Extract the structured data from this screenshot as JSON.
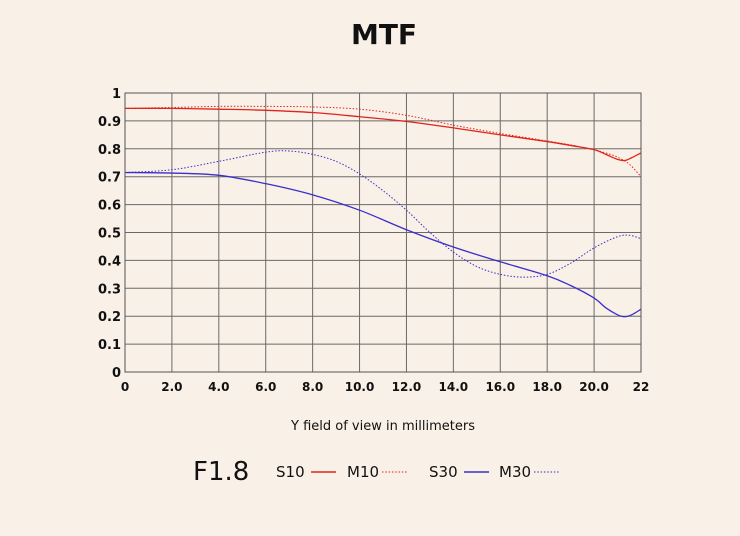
{
  "chart_data": {
    "type": "line",
    "title": "MTF",
    "xlabel": "Y field of view in millimeters",
    "ylabel": "",
    "xlim": [
      0,
      22
    ],
    "ylim": [
      0,
      1
    ],
    "grid": true,
    "x_ticks": [
      0,
      2,
      4,
      6,
      8,
      10,
      12,
      14,
      16,
      18,
      20,
      22
    ],
    "x_tick_labels": [
      "0",
      "2.0",
      "4.0",
      "6.0",
      "8.0",
      "10.0",
      "12.0",
      "14.0",
      "16.0",
      "18.0",
      "20.0",
      "22"
    ],
    "y_ticks": [
      0,
      0.1,
      0.2,
      0.3,
      0.4,
      0.5,
      0.6,
      0.7,
      0.8,
      0.9,
      1
    ],
    "y_tick_labels": [
      "0",
      "0.1",
      "0.2",
      "0.3",
      "0.4",
      "0.5",
      "0.6",
      "0.7",
      "0.8",
      "0.9",
      "1"
    ],
    "aperture": "F1.8",
    "series": [
      {
        "name": "S10",
        "color": "#e0241b",
        "style": "solid",
        "x": [
          0,
          2,
          4,
          6,
          8,
          10,
          12,
          14,
          16,
          18,
          19,
          20,
          20.5,
          21,
          21.3,
          21.6,
          22
        ],
        "y": [
          0.945,
          0.945,
          0.942,
          0.938,
          0.93,
          0.915,
          0.898,
          0.875,
          0.85,
          0.826,
          0.812,
          0.797,
          0.78,
          0.762,
          0.758,
          0.768,
          0.785
        ]
      },
      {
        "name": "M10",
        "color": "#e0241b",
        "style": "dotted",
        "x": [
          0,
          2,
          4,
          6,
          8,
          10,
          12,
          14,
          16,
          18,
          19,
          20,
          20.5,
          21,
          21.5,
          22
        ],
        "y": [
          0.945,
          0.948,
          0.952,
          0.952,
          0.95,
          0.942,
          0.92,
          0.885,
          0.855,
          0.828,
          0.814,
          0.796,
          0.785,
          0.77,
          0.745,
          0.7
        ]
      },
      {
        "name": "S30",
        "color": "#3a2fc9",
        "style": "solid",
        "x": [
          0,
          2,
          4,
          6,
          8,
          10,
          12,
          14,
          16,
          18,
          19,
          20,
          20.5,
          21,
          21.3,
          21.6,
          22
        ],
        "y": [
          0.715,
          0.713,
          0.705,
          0.675,
          0.635,
          0.58,
          0.51,
          0.448,
          0.395,
          0.345,
          0.31,
          0.265,
          0.23,
          0.205,
          0.198,
          0.205,
          0.225
        ]
      },
      {
        "name": "M30",
        "color": "#3a2fc9",
        "style": "dotted",
        "x": [
          0,
          2,
          4,
          6,
          7,
          8,
          9,
          10,
          11,
          12,
          13,
          14,
          15,
          16,
          17,
          18,
          19,
          20,
          21,
          21.5,
          22
        ],
        "y": [
          0.715,
          0.725,
          0.755,
          0.788,
          0.792,
          0.78,
          0.755,
          0.71,
          0.65,
          0.58,
          0.5,
          0.43,
          0.378,
          0.35,
          0.34,
          0.35,
          0.39,
          0.445,
          0.485,
          0.49,
          0.478
        ]
      }
    ]
  }
}
